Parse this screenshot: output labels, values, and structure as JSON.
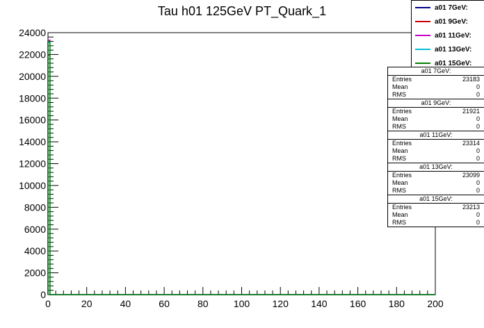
{
  "chart_data": {
    "type": "line",
    "title": "Tau h01 125GeV PT_Quark_1",
    "xlabel": "",
    "ylabel": "",
    "xlim": [
      0,
      200
    ],
    "ylim": [
      0,
      24000
    ],
    "x_ticks": [
      "0",
      "20",
      "40",
      "60",
      "80",
      "100",
      "120",
      "140",
      "160",
      "180",
      "200"
    ],
    "y_ticks": [
      "0",
      "2000",
      "4000",
      "6000",
      "8000",
      "10000",
      "12000",
      "14000",
      "16000",
      "18000",
      "20000",
      "22000",
      "24000"
    ],
    "legend_position": "top-right",
    "series": [
      {
        "name": "a01 7GeV:",
        "color": "#00008b",
        "x": [
          0,
          1,
          200
        ],
        "values": [
          23183,
          0,
          0
        ]
      },
      {
        "name": "a01 9GeV:",
        "color": "#cc0000",
        "x": [
          0,
          1,
          200
        ],
        "values": [
          21921,
          0,
          0
        ]
      },
      {
        "name": "a01 11GeV:",
        "color": "#cc00cc",
        "x": [
          0,
          1,
          200
        ],
        "values": [
          23314,
          0,
          0
        ]
      },
      {
        "name": "a01 13GeV:",
        "color": "#00bcd4",
        "x": [
          0,
          1,
          200
        ],
        "values": [
          23099,
          0,
          0
        ]
      },
      {
        "name": "a01 15GeV:",
        "color": "#008000",
        "x": [
          0,
          1,
          200
        ],
        "values": [
          23213,
          0,
          0
        ]
      }
    ],
    "stats": [
      {
        "title": "a01 7GeV:",
        "entries_label": "Entries",
        "entries": "23183",
        "mean_label": "Mean",
        "mean": "0",
        "rms_label": "RMS",
        "rms": "0"
      },
      {
        "title": "a01 9GeV:",
        "entries_label": "Entries",
        "entries": "21921",
        "mean_label": "Mean",
        "mean": "0",
        "rms_label": "RMS",
        "rms": "0"
      },
      {
        "title": "a01 11GeV:",
        "entries_label": "Entries",
        "entries": "23314",
        "mean_label": "Mean",
        "mean": "0",
        "rms_label": "RMS",
        "rms": "0"
      },
      {
        "title": "a01 13GeV:",
        "entries_label": "Entries",
        "entries": "23099",
        "mean_label": "Mean",
        "mean": "0",
        "rms_label": "RMS",
        "rms": "0"
      },
      {
        "title": "a01 15GeV:",
        "entries_label": "Entries",
        "entries": "23213",
        "mean_label": "Mean",
        "mean": "0",
        "rms_label": "RMS",
        "rms": "0"
      }
    ]
  }
}
